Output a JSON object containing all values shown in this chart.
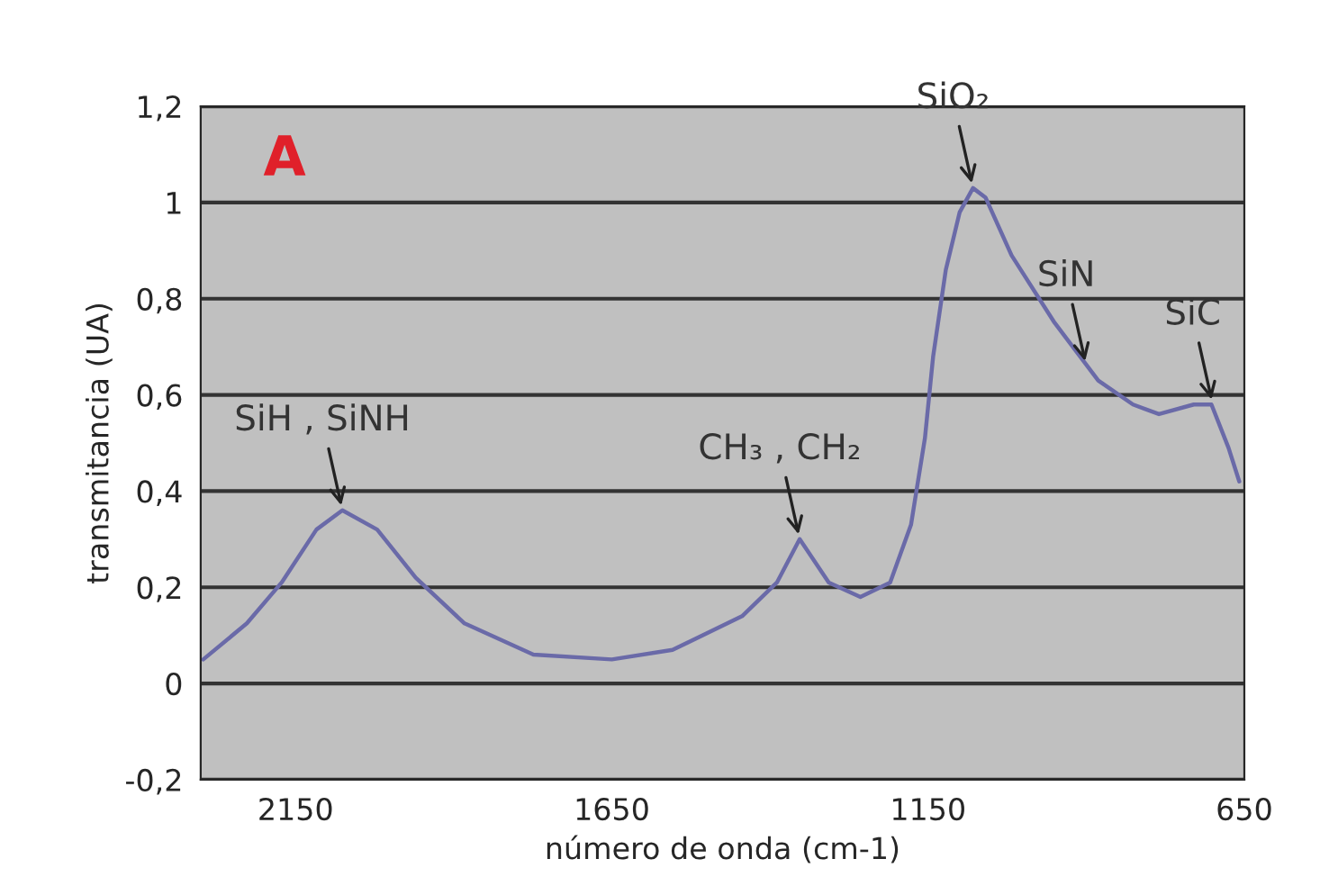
{
  "chart_data": {
    "type": "line",
    "xlabel": "número de onda (cm-1)",
    "ylabel": "transmitancia (UA)",
    "x": [
      2296,
      2227,
      2172,
      2117,
      2076,
      2021,
      1960,
      1883,
      1774,
      1650,
      1554,
      1444,
      1389,
      1353,
      1307,
      1257,
      1210,
      1177,
      1155,
      1142,
      1122,
      1100,
      1079,
      1059,
      1018,
      950,
      881,
      826,
      785,
      730,
      702,
      675,
      658
    ],
    "series": [
      {
        "color": "#6a6aa8",
        "values": [
          0.05,
          0.125,
          0.21,
          0.32,
          0.36,
          0.32,
          0.22,
          0.125,
          0.06,
          0.05,
          0.07,
          0.14,
          0.21,
          0.3,
          0.21,
          0.18,
          0.21,
          0.33,
          0.51,
          0.68,
          0.86,
          0.98,
          1.03,
          1.01,
          0.89,
          0.75,
          0.63,
          0.58,
          0.56,
          0.58,
          0.58,
          0.49,
          0.42
        ]
      }
    ],
    "xlim": [
      2300,
      650
    ],
    "xticks": [
      2150,
      1650,
      1150,
      650
    ],
    "ylim": [
      -0.2,
      1.2
    ],
    "yticks": [
      {
        "value": -0.2,
        "label": "-0,2"
      },
      0,
      {
        "value": 0.2,
        "label": "0,2"
      },
      {
        "value": 0.4,
        "label": "0,4"
      },
      {
        "value": 0.6,
        "label": "0,6"
      },
      {
        "value": 0.8,
        "label": "0,8"
      },
      1,
      {
        "value": 1.2,
        "label": "1,2"
      }
    ],
    "grid": "y",
    "marker": "none",
    "line_style": "solid",
    "annotations": [
      "A",
      {
        "text": "SiH , SiNH",
        "x": 2076,
        "y": 0.36
      },
      {
        "text": "CH₃ , CH₂",
        "x": 1353,
        "y": 0.3
      },
      {
        "text": "SiO₂",
        "x": 1079,
        "y": 1.03
      },
      {
        "text": "SiN",
        "x": 900,
        "y": 0.66
      },
      {
        "text": "SiC",
        "x": 700,
        "y": 0.58
      }
    ]
  }
}
